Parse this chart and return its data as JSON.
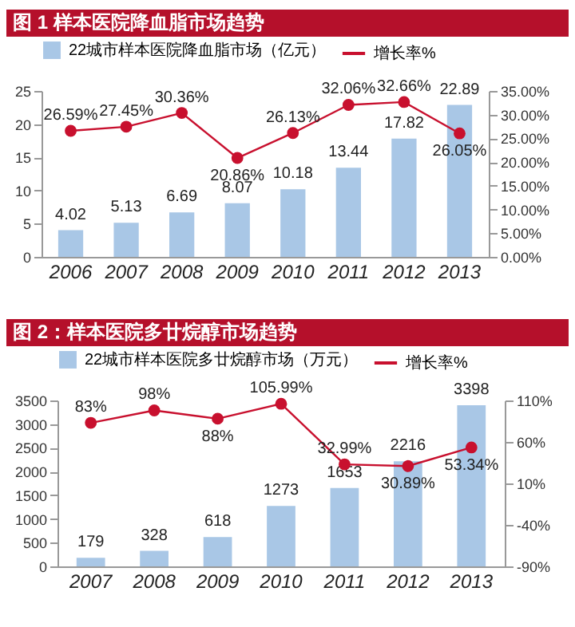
{
  "chart_data": [
    {
      "type": "bar",
      "title": "图 1 样本医院降血脂市场趋势",
      "categories": [
        "2006",
        "2007",
        "2008",
        "2009",
        "2010",
        "2011",
        "2012",
        "2013"
      ],
      "ylim": [
        0,
        25
      ],
      "yticks": [
        0,
        5,
        10,
        15,
        20,
        25
      ],
      "y2lim": [
        0,
        35
      ],
      "y2ticks": [
        {
          "value": 0,
          "label": "0.00%"
        },
        {
          "value": 5,
          "label": "5.00%"
        },
        {
          "value": 10,
          "label": "10.00%"
        },
        {
          "value": 15,
          "label": "15.00%"
        },
        {
          "value": 20,
          "label": "20.00%"
        },
        {
          "value": 25,
          "label": "25.00%"
        },
        {
          "value": 30,
          "label": "30.00%"
        },
        {
          "value": 35,
          "label": "35.00%"
        }
      ],
      "legend": "top",
      "grid": false,
      "marker": "circle",
      "series": [
        {
          "name": "22城市样本医院降血脂市场（亿元）",
          "color": "#a9c7e6",
          "values": [
            4.02,
            5.13,
            6.69,
            8.07,
            10.18,
            13.44,
            17.82,
            22.89
          ],
          "value_labels": [
            "4.02",
            "5.13",
            "6.69",
            "8.07",
            "10.18",
            "13.44",
            "17.82",
            "22.89"
          ]
        },
        {
          "name": "增长率%",
          "type": "line",
          "axis": "y2",
          "color": "#c8102e",
          "values": [
            26.59,
            27.45,
            30.36,
            20.86,
            26.13,
            32.06,
            32.66,
            26.05
          ],
          "value_labels": [
            "26.59%",
            "27.45%",
            "30.36%",
            "20.86%",
            "26.13%",
            "32.06%",
            "32.66%",
            "26.05%"
          ]
        }
      ]
    },
    {
      "type": "bar",
      "title": "图 2：样本医院多廿烷醇市场趋势",
      "categories": [
        "2007",
        "2008",
        "2009",
        "2010",
        "2011",
        "2012",
        "2013"
      ],
      "ylim": [
        0,
        3500
      ],
      "yticks": [
        0,
        500,
        1000,
        1500,
        2000,
        2500,
        3000,
        3500
      ],
      "y2lim": [
        -90,
        110
      ],
      "y2ticks": [
        {
          "value": -90,
          "label": "-90%"
        },
        {
          "value": -40,
          "label": "-40%"
        },
        {
          "value": 10,
          "label": "10%"
        },
        {
          "value": 60,
          "label": "60%"
        },
        {
          "value": 110,
          "label": "110%"
        }
      ],
      "legend": "top",
      "grid": false,
      "marker": "circle",
      "series": [
        {
          "name": "22城市样本医院多廿烷醇市场（万元）",
          "color": "#a9c7e6",
          "values": [
            179,
            328,
            618,
            1273,
            1653,
            2216,
            3398
          ],
          "value_labels": [
            "179",
            "328",
            "618",
            "1273",
            "1653",
            "2216",
            "3398"
          ]
        },
        {
          "name": "增长率%",
          "type": "line",
          "axis": "y2",
          "color": "#c8102e",
          "values": [
            83,
            98,
            88,
            105.99,
            32.99,
            30.89,
            53.34
          ],
          "value_labels": [
            "83%",
            "98%",
            "88%",
            "105.99%",
            "32.99%",
            "30.89%",
            "53.34%"
          ]
        }
      ]
    }
  ]
}
